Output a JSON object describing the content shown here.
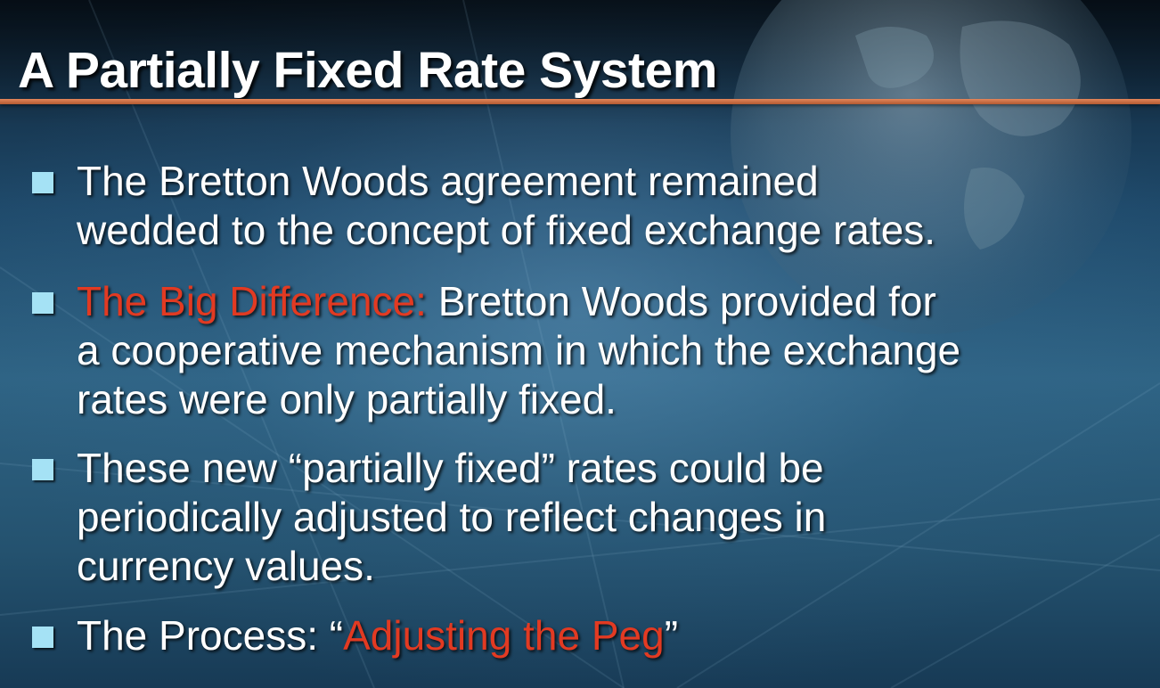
{
  "slide": {
    "title": "A Partially Fixed Rate System",
    "colors": {
      "accent_rule": "#c86a3f",
      "bullet_square": "#a5e2f5",
      "highlight_red": "#e23a22",
      "text": "#ffffff"
    },
    "bullets": [
      {
        "lines": [
          "The Bretton Woods agreement remained",
          "wedded to the concept of fixed exchange rates."
        ]
      },
      {
        "highlight": "The Big Difference:",
        "lines": [
          " Bretton Woods provided for",
          "a cooperative mechanism in which the exchange",
          "rates were only partially fixed."
        ]
      },
      {
        "lines": [
          "These new “partially fixed” rates could be",
          "periodically adjusted to reflect changes in",
          "currency values."
        ]
      },
      {
        "prefix": "The Process: “",
        "highlight": "Adjusting the Peg",
        "suffix": "”"
      }
    ]
  }
}
